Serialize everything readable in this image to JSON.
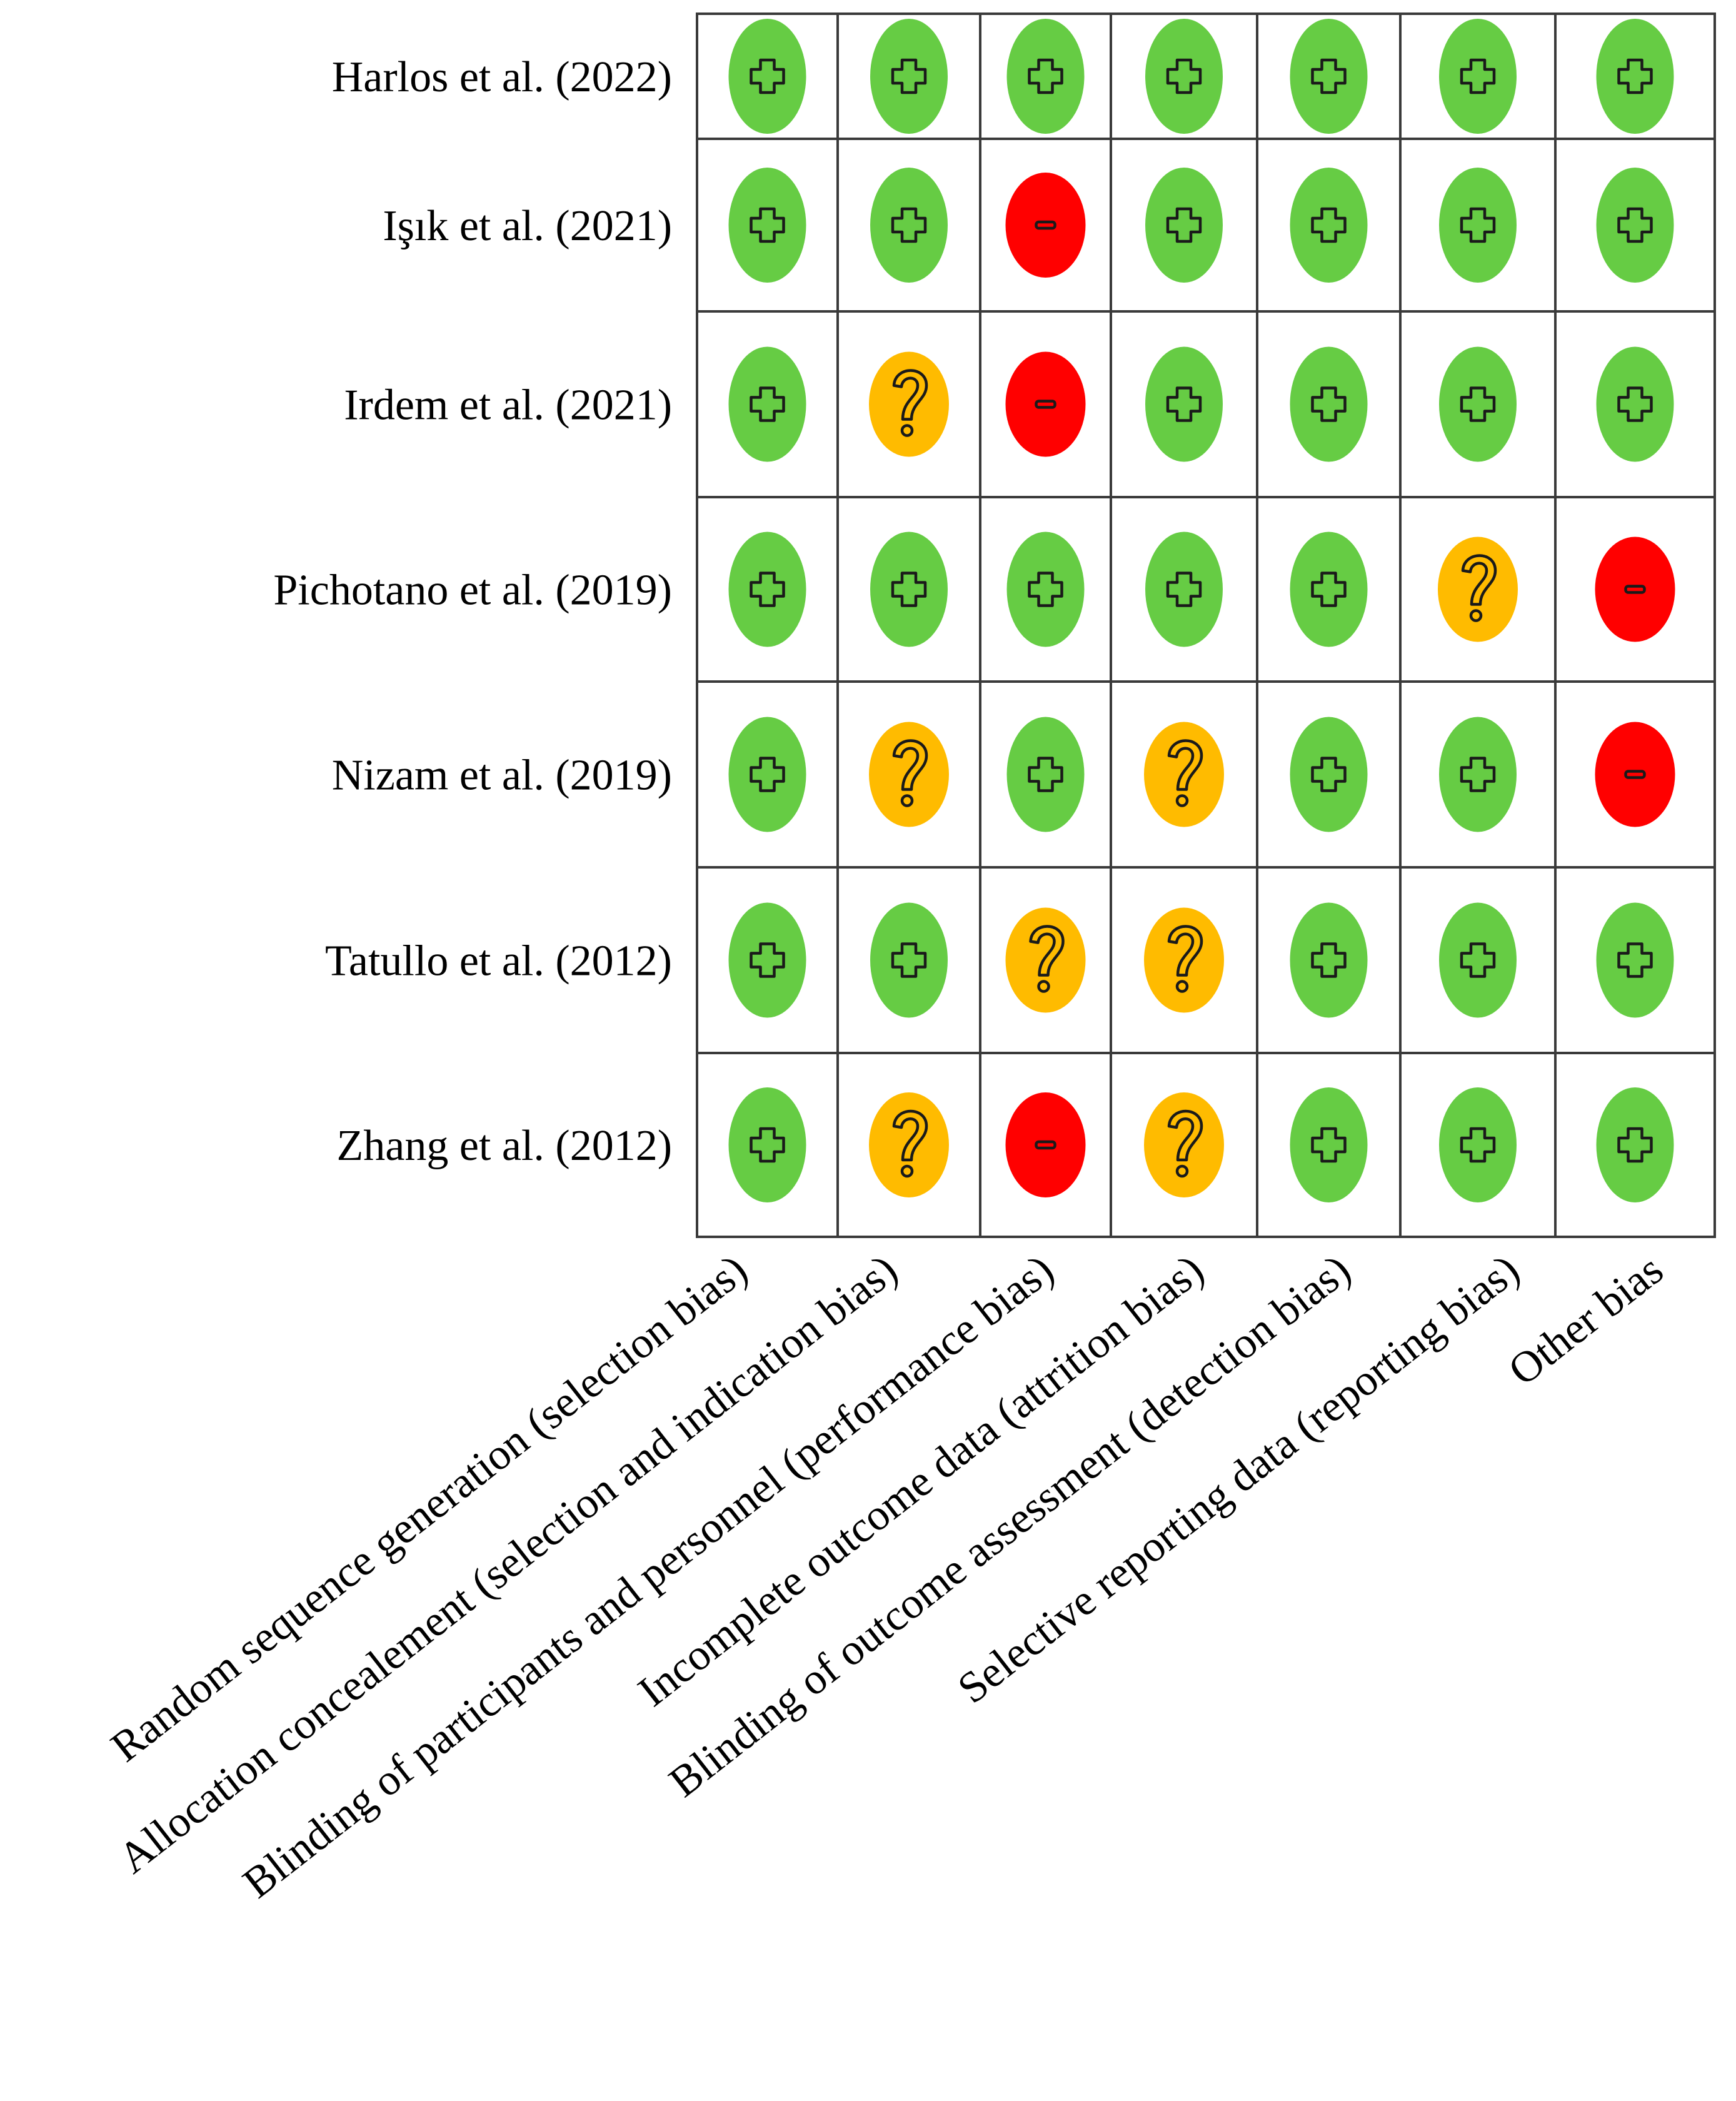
{
  "chart_data": {
    "type": "table",
    "studies": [
      "Harlos et al. (2022)",
      "Işık et al. (2021)",
      "Irdem et al. (2021)",
      "Pichotano et al. (2019)",
      "Nizam et al. (2019)",
      "Tatullo et al. (2012)",
      "Zhang et al. (2012)"
    ],
    "domains": [
      "Random sequence generation  (selection bias)",
      "Allocation concealement (selection and indication bias)",
      "Blinding of participants and personnel  (performance bias)",
      "Incomplete outcome data (attrition bias)",
      "Blinding of outcome assessment  (detection bias)",
      "Selective reporting data (reporting bias)",
      "Other bias"
    ],
    "judgements": [
      [
        "low",
        "low",
        "low",
        "low",
        "low",
        "low",
        "low"
      ],
      [
        "low",
        "low",
        "high",
        "low",
        "low",
        "low",
        "low"
      ],
      [
        "low",
        "unclear",
        "high",
        "low",
        "low",
        "low",
        "low"
      ],
      [
        "low",
        "low",
        "low",
        "low",
        "low",
        "unclear",
        "high"
      ],
      [
        "low",
        "unclear",
        "low",
        "unclear",
        "low",
        "low",
        "high"
      ],
      [
        "low",
        "low",
        "unclear",
        "unclear",
        "low",
        "low",
        "low"
      ],
      [
        "low",
        "unclear",
        "high",
        "unclear",
        "low",
        "low",
        "low"
      ]
    ],
    "symbols": {
      "low": "+",
      "unclear": "?",
      "high": "-"
    },
    "colors": {
      "low": "#66cc44",
      "unclear": "#ffbb00",
      "high": "#ff0000",
      "grid": "#3a3a3a",
      "text": "#000000"
    }
  }
}
